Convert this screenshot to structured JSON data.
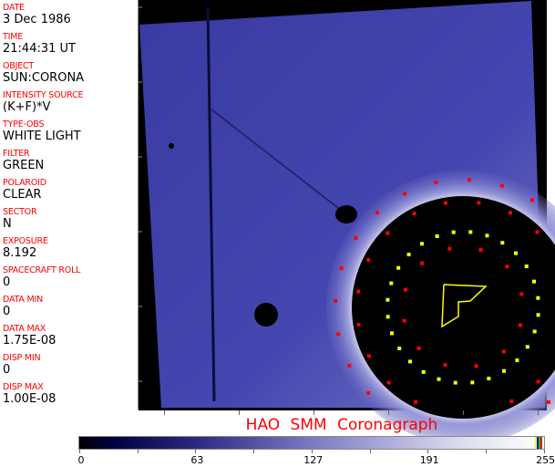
{
  "header_fields": [
    {
      "label": "DATE",
      "value": "3 Dec 1986"
    },
    {
      "label": "TIME",
      "value": "21:44:31 UT"
    },
    {
      "label": "OBJECT",
      "value": "SUN:CORONA"
    },
    {
      "label": "INTENSITY SOURCE",
      "value": "(K+F)*V"
    },
    {
      "label": "TYPE-OBS",
      "value": "WHITE LIGHT"
    },
    {
      "label": "FILTER",
      "value": "GREEN"
    },
    {
      "label": "POLAROID",
      "value": "CLEAR"
    },
    {
      "label": "SECTOR",
      "value": "N"
    },
    {
      "label": "EXPOSURE",
      "value": "8.192"
    },
    {
      "label": "SPACECRAFT ROLL",
      "value": "0"
    },
    {
      "label": "DATA MIN",
      "value": "0"
    },
    {
      "label": "DATA MAX",
      "value": "1.75E-08"
    },
    {
      "label": "DISP MIN",
      "value": "0"
    },
    {
      "label": "DISP MAX",
      "value": "1.00E-08"
    }
  ],
  "title": "HAO  SMM  Coronagraph",
  "colorbar": {
    "tick_labels": [
      "0",
      "63",
      "127",
      "191",
      "255"
    ],
    "top_colors": [
      "#ffff00",
      "#0000ff",
      "#00c000",
      "#ff0000"
    ]
  },
  "colors": {
    "label": "#ff0000",
    "overlay_yellow": "#ffff00",
    "overlay_red": "#ff0000",
    "image_blue": "#3c3ca8"
  }
}
